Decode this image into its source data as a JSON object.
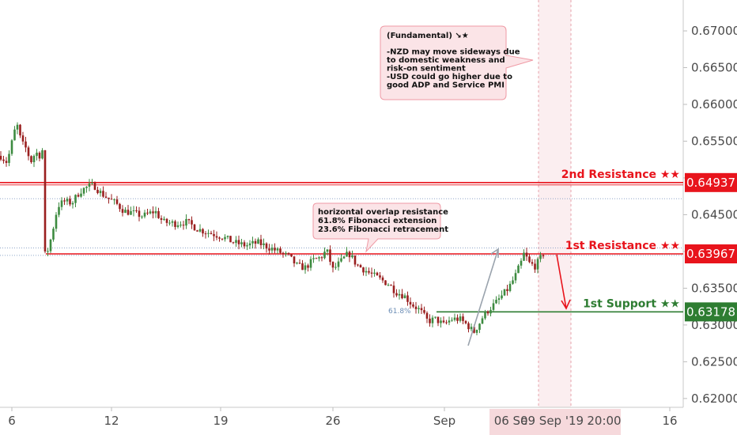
{
  "chart_data": {
    "type": "candlestick",
    "y_axis": {
      "ticks": [
        "0.67000",
        "0.66500",
        "0.66000",
        "0.65500",
        "0.65000",
        "0.64500",
        "0.64000",
        "0.63500",
        "0.63000",
        "0.62500",
        "0.62000"
      ],
      "ylim": [
        0.6188,
        0.6742
      ]
    },
    "x_axis": {
      "ticks": [
        "6",
        "12",
        "19",
        "26",
        "Sep",
        "16"
      ],
      "highlight_labels": [
        "06 Se",
        "09 Sep '19",
        "20:00"
      ]
    },
    "levels": [
      {
        "label": "2nd Resistance ★★",
        "value": "0.64937",
        "price": 0.64937,
        "color": "#e8141c"
      },
      {
        "label": "1st Resistance ★★",
        "value": "0.63967",
        "price": 0.63967,
        "color": "#e8141c"
      },
      {
        "label": "1st Support ★★",
        "value": "0.63178",
        "price": 0.63178,
        "color": "#2e7d32"
      }
    ],
    "dotted_levels": [
      0.64717,
      0.64047,
      0.63947
    ],
    "fib_label": "61.8%",
    "callouts": {
      "fundamental": [
        "(Fundamental) ↘★",
        "",
        "-NZD may move sideways due",
        "to domestic weakness and",
        "risk-on sentiment",
        "-USD could go higher due to",
        "good ADP and Service PMI"
      ],
      "technical": [
        "horizontal overlap resistance",
        "61.8% Fibonacci extension",
        "23.6% Fibonacci retracement"
      ]
    },
    "price_path": [
      {
        "x": 0,
        "price": 0.653
      },
      {
        "x": 8,
        "price": 0.6521
      },
      {
        "x": 14,
        "price": 0.6548
      },
      {
        "x": 20,
        "price": 0.6575
      },
      {
        "x": 26,
        "price": 0.6548
      },
      {
        "x": 32,
        "price": 0.654
      },
      {
        "x": 38,
        "price": 0.6522
      },
      {
        "x": 44,
        "price": 0.6535
      },
      {
        "x": 50,
        "price": 0.653
      },
      {
        "x": 55,
        "price": 0.6545
      },
      {
        "x": 58,
        "price": 0.6396
      },
      {
        "x": 64,
        "price": 0.642
      },
      {
        "x": 72,
        "price": 0.6462
      },
      {
        "x": 80,
        "price": 0.6468
      },
      {
        "x": 90,
        "price": 0.6466
      },
      {
        "x": 100,
        "price": 0.6482
      },
      {
        "x": 110,
        "price": 0.6488
      },
      {
        "x": 118,
        "price": 0.649
      },
      {
        "x": 126,
        "price": 0.648
      },
      {
        "x": 136,
        "price": 0.6472
      },
      {
        "x": 146,
        "price": 0.6465
      },
      {
        "x": 156,
        "price": 0.6455
      },
      {
        "x": 168,
        "price": 0.6452
      },
      {
        "x": 180,
        "price": 0.6448
      },
      {
        "x": 195,
        "price": 0.6455
      },
      {
        "x": 205,
        "price": 0.644
      },
      {
        "x": 220,
        "price": 0.6438
      },
      {
        "x": 235,
        "price": 0.644
      },
      {
        "x": 250,
        "price": 0.643
      },
      {
        "x": 265,
        "price": 0.6425
      },
      {
        "x": 280,
        "price": 0.642
      },
      {
        "x": 295,
        "price": 0.6412
      },
      {
        "x": 310,
        "price": 0.6408
      },
      {
        "x": 325,
        "price": 0.6412
      },
      {
        "x": 340,
        "price": 0.6405
      },
      {
        "x": 355,
        "price": 0.6398
      },
      {
        "x": 365,
        "price": 0.6392
      },
      {
        "x": 375,
        "price": 0.638
      },
      {
        "x": 385,
        "price": 0.6378
      },
      {
        "x": 395,
        "price": 0.6388
      },
      {
        "x": 405,
        "price": 0.6392
      },
      {
        "x": 412,
        "price": 0.6402
      },
      {
        "x": 420,
        "price": 0.6375
      },
      {
        "x": 430,
        "price": 0.6386
      },
      {
        "x": 440,
        "price": 0.6398
      },
      {
        "x": 450,
        "price": 0.6382
      },
      {
        "x": 460,
        "price": 0.6375
      },
      {
        "x": 470,
        "price": 0.6368
      },
      {
        "x": 480,
        "price": 0.6362
      },
      {
        "x": 490,
        "price": 0.6356
      },
      {
        "x": 500,
        "price": 0.6345
      },
      {
        "x": 510,
        "price": 0.634
      },
      {
        "x": 520,
        "price": 0.6328
      },
      {
        "x": 530,
        "price": 0.632
      },
      {
        "x": 540,
        "price": 0.6305
      },
      {
        "x": 550,
        "price": 0.6308
      },
      {
        "x": 560,
        "price": 0.63
      },
      {
        "x": 570,
        "price": 0.6308
      },
      {
        "x": 580,
        "price": 0.6308
      },
      {
        "x": 590,
        "price": 0.63
      },
      {
        "x": 598,
        "price": 0.629
      },
      {
        "x": 605,
        "price": 0.6302
      },
      {
        "x": 610,
        "price": 0.6312
      },
      {
        "x": 618,
        "price": 0.6322
      },
      {
        "x": 626,
        "price": 0.633
      },
      {
        "x": 634,
        "price": 0.634
      },
      {
        "x": 642,
        "price": 0.635
      },
      {
        "x": 650,
        "price": 0.6365
      },
      {
        "x": 658,
        "price": 0.6385
      },
      {
        "x": 662,
        "price": 0.6398
      },
      {
        "x": 668,
        "price": 0.6384
      },
      {
        "x": 676,
        "price": 0.638
      },
      {
        "x": 682,
        "price": 0.639
      },
      {
        "x": 687,
        "price": 0.6398
      }
    ]
  }
}
